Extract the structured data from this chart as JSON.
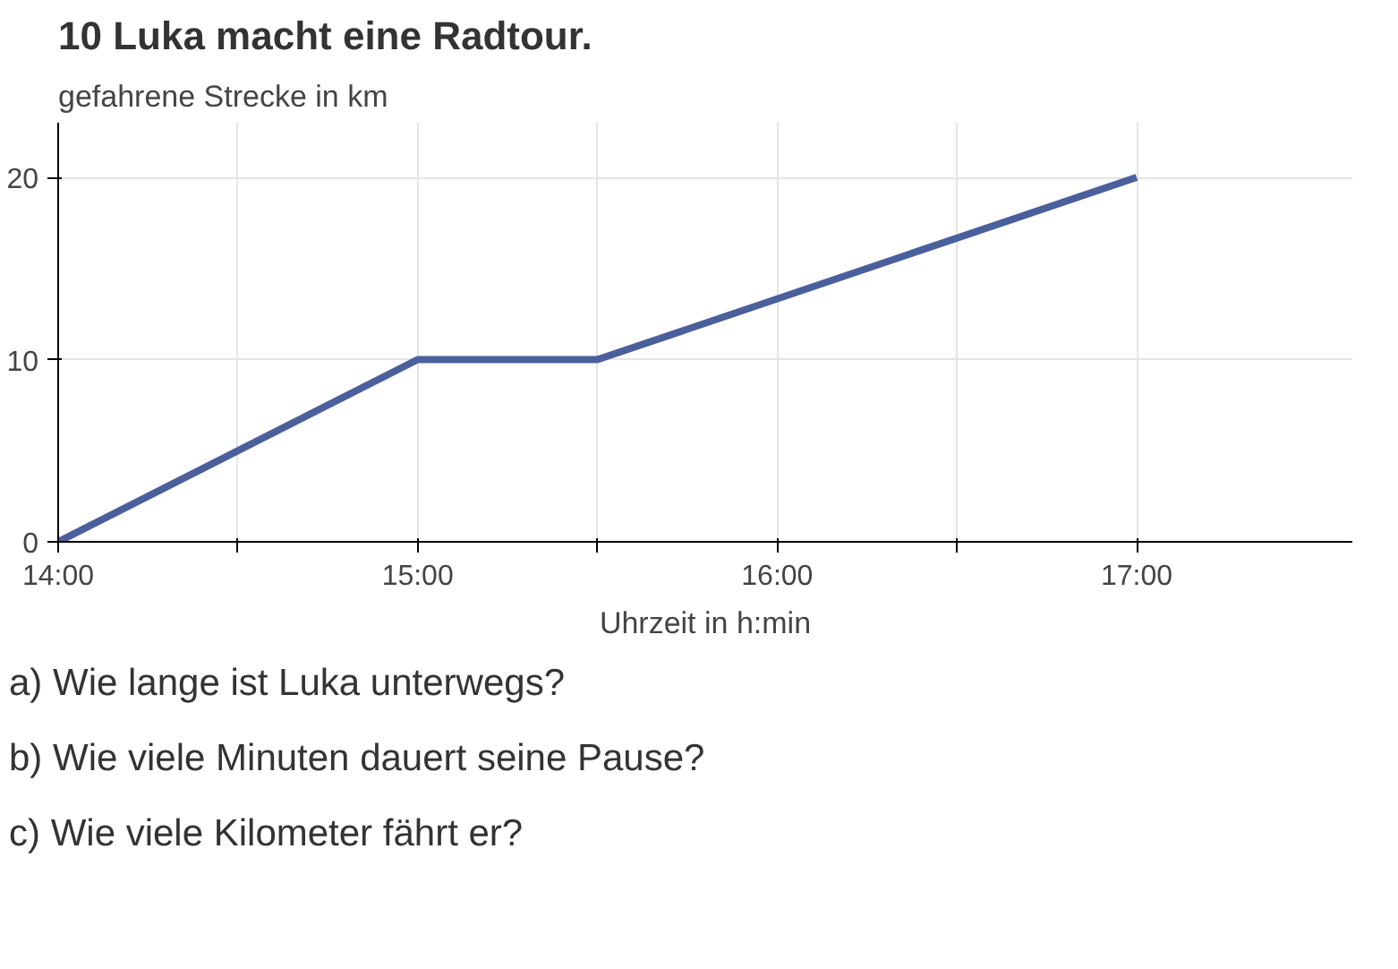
{
  "chart_data": {
    "type": "line",
    "title": "10 Luka macht eine Radtour.",
    "xlabel": "Uhrzeit in h:min",
    "ylabel": "gefahrene Strecke in km",
    "x": [
      14,
      15,
      15.5,
      17
    ],
    "series": [
      {
        "color": "#4a5f9c",
        "values": [
          0,
          10,
          10,
          20
        ]
      }
    ],
    "xlim": [
      14,
      17.6
    ],
    "ylim": [
      0,
      23
    ],
    "xticks": [
      {
        "value": 14,
        "label": "14:00"
      },
      {
        "value": 14.5,
        "label": null
      },
      {
        "value": 15,
        "label": "15:00"
      },
      {
        "value": 15.5,
        "label": null
      },
      {
        "value": 16,
        "label": "16:00"
      },
      {
        "value": 16.5,
        "label": null
      },
      {
        "value": 17,
        "label": "17:00"
      }
    ],
    "yticks": [
      0,
      10,
      20
    ],
    "grid": true,
    "marker": "none",
    "line_style": "solid",
    "annotations": [
      "a) Wie lange ist Luka unterwegs?",
      "b) Wie viele Minuten dauert seine Pause?",
      "c) Wie viele Kilometer fährt er?"
    ]
  }
}
